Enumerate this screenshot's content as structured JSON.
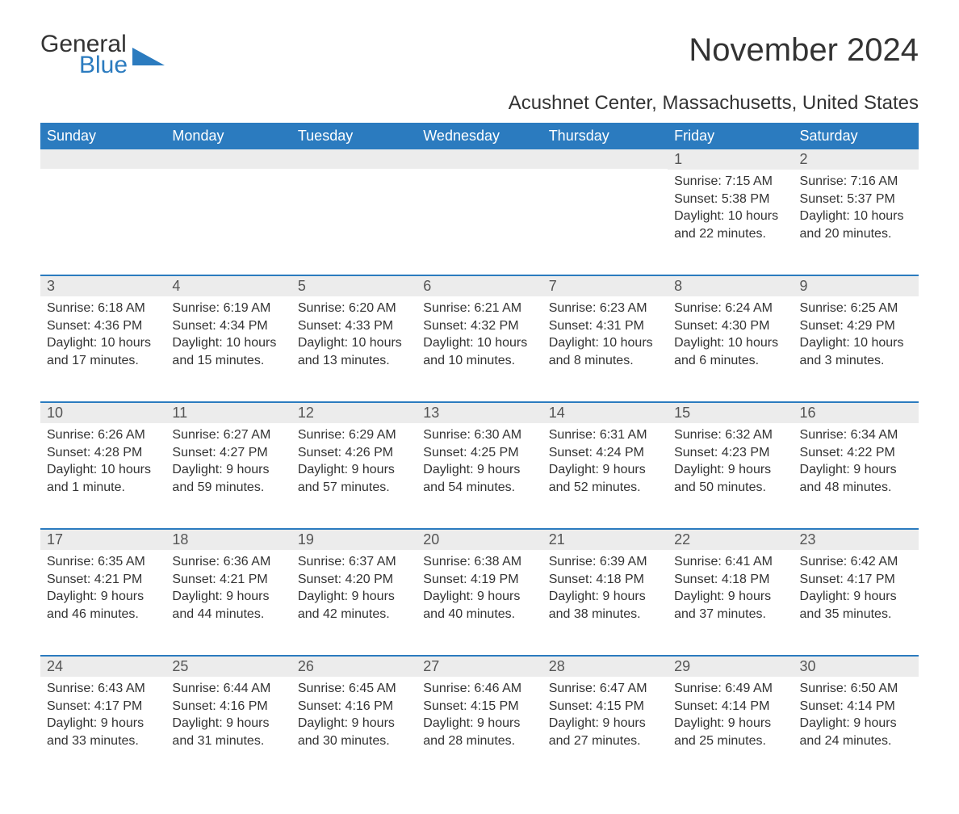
{
  "brand": {
    "word1": "General",
    "word2": "Blue"
  },
  "title": "November 2024",
  "subtitle": "Acushnet Center, Massachusetts, United States",
  "colors": {
    "header_bg": "#2b7bbf",
    "header_text": "#ffffff",
    "daynum_bg": "#ececec",
    "rule": "#2b7bbf",
    "body_text": "#333333"
  },
  "day_headers": [
    "Sunday",
    "Monday",
    "Tuesday",
    "Wednesday",
    "Thursday",
    "Friday",
    "Saturday"
  ],
  "weeks": [
    [
      null,
      null,
      null,
      null,
      null,
      {
        "n": "1",
        "sunrise": "Sunrise: 7:15 AM",
        "sunset": "Sunset: 5:38 PM",
        "daylight": "Daylight: 10 hours and 22 minutes."
      },
      {
        "n": "2",
        "sunrise": "Sunrise: 7:16 AM",
        "sunset": "Sunset: 5:37 PM",
        "daylight": "Daylight: 10 hours and 20 minutes."
      }
    ],
    [
      {
        "n": "3",
        "sunrise": "Sunrise: 6:18 AM",
        "sunset": "Sunset: 4:36 PM",
        "daylight": "Daylight: 10 hours and 17 minutes."
      },
      {
        "n": "4",
        "sunrise": "Sunrise: 6:19 AM",
        "sunset": "Sunset: 4:34 PM",
        "daylight": "Daylight: 10 hours and 15 minutes."
      },
      {
        "n": "5",
        "sunrise": "Sunrise: 6:20 AM",
        "sunset": "Sunset: 4:33 PM",
        "daylight": "Daylight: 10 hours and 13 minutes."
      },
      {
        "n": "6",
        "sunrise": "Sunrise: 6:21 AM",
        "sunset": "Sunset: 4:32 PM",
        "daylight": "Daylight: 10 hours and 10 minutes."
      },
      {
        "n": "7",
        "sunrise": "Sunrise: 6:23 AM",
        "sunset": "Sunset: 4:31 PM",
        "daylight": "Daylight: 10 hours and 8 minutes."
      },
      {
        "n": "8",
        "sunrise": "Sunrise: 6:24 AM",
        "sunset": "Sunset: 4:30 PM",
        "daylight": "Daylight: 10 hours and 6 minutes."
      },
      {
        "n": "9",
        "sunrise": "Sunrise: 6:25 AM",
        "sunset": "Sunset: 4:29 PM",
        "daylight": "Daylight: 10 hours and 3 minutes."
      }
    ],
    [
      {
        "n": "10",
        "sunrise": "Sunrise: 6:26 AM",
        "sunset": "Sunset: 4:28 PM",
        "daylight": "Daylight: 10 hours and 1 minute."
      },
      {
        "n": "11",
        "sunrise": "Sunrise: 6:27 AM",
        "sunset": "Sunset: 4:27 PM",
        "daylight": "Daylight: 9 hours and 59 minutes."
      },
      {
        "n": "12",
        "sunrise": "Sunrise: 6:29 AM",
        "sunset": "Sunset: 4:26 PM",
        "daylight": "Daylight: 9 hours and 57 minutes."
      },
      {
        "n": "13",
        "sunrise": "Sunrise: 6:30 AM",
        "sunset": "Sunset: 4:25 PM",
        "daylight": "Daylight: 9 hours and 54 minutes."
      },
      {
        "n": "14",
        "sunrise": "Sunrise: 6:31 AM",
        "sunset": "Sunset: 4:24 PM",
        "daylight": "Daylight: 9 hours and 52 minutes."
      },
      {
        "n": "15",
        "sunrise": "Sunrise: 6:32 AM",
        "sunset": "Sunset: 4:23 PM",
        "daylight": "Daylight: 9 hours and 50 minutes."
      },
      {
        "n": "16",
        "sunrise": "Sunrise: 6:34 AM",
        "sunset": "Sunset: 4:22 PM",
        "daylight": "Daylight: 9 hours and 48 minutes."
      }
    ],
    [
      {
        "n": "17",
        "sunrise": "Sunrise: 6:35 AM",
        "sunset": "Sunset: 4:21 PM",
        "daylight": "Daylight: 9 hours and 46 minutes."
      },
      {
        "n": "18",
        "sunrise": "Sunrise: 6:36 AM",
        "sunset": "Sunset: 4:21 PM",
        "daylight": "Daylight: 9 hours and 44 minutes."
      },
      {
        "n": "19",
        "sunrise": "Sunrise: 6:37 AM",
        "sunset": "Sunset: 4:20 PM",
        "daylight": "Daylight: 9 hours and 42 minutes."
      },
      {
        "n": "20",
        "sunrise": "Sunrise: 6:38 AM",
        "sunset": "Sunset: 4:19 PM",
        "daylight": "Daylight: 9 hours and 40 minutes."
      },
      {
        "n": "21",
        "sunrise": "Sunrise: 6:39 AM",
        "sunset": "Sunset: 4:18 PM",
        "daylight": "Daylight: 9 hours and 38 minutes."
      },
      {
        "n": "22",
        "sunrise": "Sunrise: 6:41 AM",
        "sunset": "Sunset: 4:18 PM",
        "daylight": "Daylight: 9 hours and 37 minutes."
      },
      {
        "n": "23",
        "sunrise": "Sunrise: 6:42 AM",
        "sunset": "Sunset: 4:17 PM",
        "daylight": "Daylight: 9 hours and 35 minutes."
      }
    ],
    [
      {
        "n": "24",
        "sunrise": "Sunrise: 6:43 AM",
        "sunset": "Sunset: 4:17 PM",
        "daylight": "Daylight: 9 hours and 33 minutes."
      },
      {
        "n": "25",
        "sunrise": "Sunrise: 6:44 AM",
        "sunset": "Sunset: 4:16 PM",
        "daylight": "Daylight: 9 hours and 31 minutes."
      },
      {
        "n": "26",
        "sunrise": "Sunrise: 6:45 AM",
        "sunset": "Sunset: 4:16 PM",
        "daylight": "Daylight: 9 hours and 30 minutes."
      },
      {
        "n": "27",
        "sunrise": "Sunrise: 6:46 AM",
        "sunset": "Sunset: 4:15 PM",
        "daylight": "Daylight: 9 hours and 28 minutes."
      },
      {
        "n": "28",
        "sunrise": "Sunrise: 6:47 AM",
        "sunset": "Sunset: 4:15 PM",
        "daylight": "Daylight: 9 hours and 27 minutes."
      },
      {
        "n": "29",
        "sunrise": "Sunrise: 6:49 AM",
        "sunset": "Sunset: 4:14 PM",
        "daylight": "Daylight: 9 hours and 25 minutes."
      },
      {
        "n": "30",
        "sunrise": "Sunrise: 6:50 AM",
        "sunset": "Sunset: 4:14 PM",
        "daylight": "Daylight: 9 hours and 24 minutes."
      }
    ]
  ]
}
